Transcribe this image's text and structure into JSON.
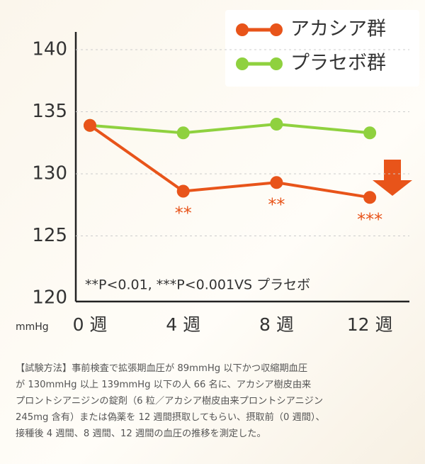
{
  "chart_data": {
    "type": "line",
    "categories": [
      "0 週",
      "4 週",
      "8 週",
      "12 週"
    ],
    "series": [
      {
        "name": "アカシア群",
        "color": "#e8541a",
        "values": [
          133.9,
          128.6,
          129.3,
          128.1
        ]
      },
      {
        "name": "プラセボ群",
        "color": "#8fd13f",
        "values": [
          133.9,
          133.3,
          134.0,
          133.3
        ]
      }
    ],
    "significance": [
      null,
      "**",
      "**",
      "***"
    ],
    "ylim": [
      120,
      140
    ],
    "yticks": [
      120,
      125,
      130,
      135,
      140
    ],
    "grid": true,
    "y_unit": "mmHg",
    "footnote": "**P<0.01, ***P<0.001VS プラセボ",
    "legend": "upper right"
  },
  "description": [
    "【試験方法】事前検査で拡張期血圧が 89mmHg 以下かつ収縮期血圧",
    "が 130mmHg 以上 139mmHg 以下の人 66 名に、アカシア樹皮由来",
    "プロントシアニジンの錠剤（6 粒／アカシア樹皮由来プロントシアニジン",
    "245mg 含有）または偽薬を 12 週間摂取してもらい、摂取前（0 週間）、",
    "接種後 4 週間、8 週間、12 週間の血圧の推移を測定した。"
  ]
}
